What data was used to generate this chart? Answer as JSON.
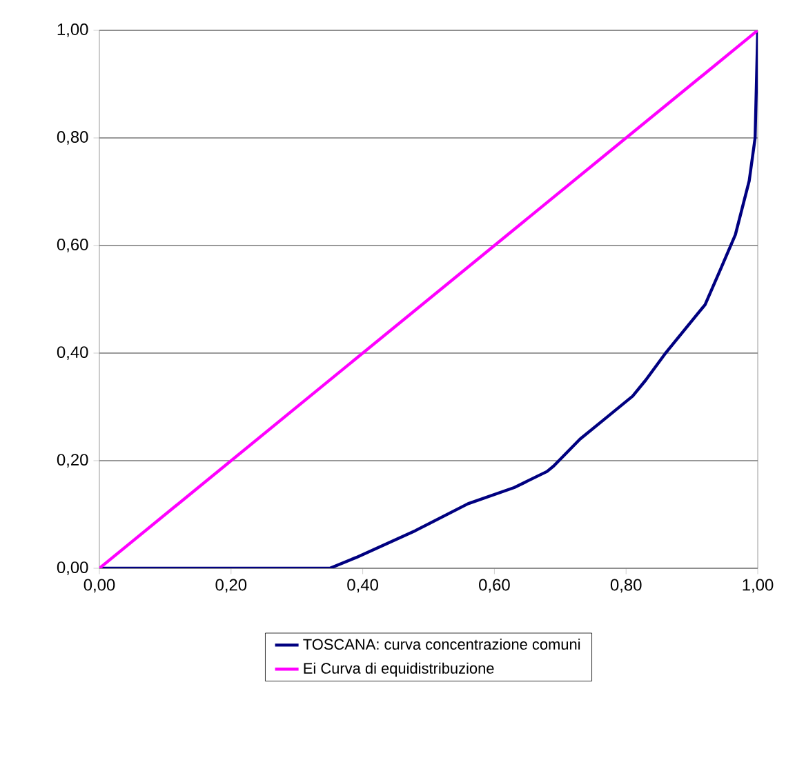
{
  "chart_data": {
    "type": "line",
    "xlim": [
      0,
      1
    ],
    "ylim": [
      0,
      1
    ],
    "xticks": [
      {
        "value": 0,
        "label": "0,00"
      },
      {
        "value": 0.2,
        "label": "0,20"
      },
      {
        "value": 0.4,
        "label": "0,40"
      },
      {
        "value": 0.6,
        "label": "0,60"
      },
      {
        "value": 0.8,
        "label": "0,80"
      },
      {
        "value": 1,
        "label": "1,00"
      }
    ],
    "yticks": [
      {
        "value": 0,
        "label": "0,00"
      },
      {
        "value": 0.2,
        "label": "0,20"
      },
      {
        "value": 0.4,
        "label": "0,40"
      },
      {
        "value": 0.6,
        "label": "0,60"
      },
      {
        "value": 0.8,
        "label": "0,80"
      },
      {
        "value": 1,
        "label": "1,00"
      }
    ],
    "grid": "y",
    "legend": "bottom",
    "marker": "none",
    "line_style": "solid",
    "series": [
      {
        "name": "TOSCANA: curva concentrazione comuni",
        "color": "#000080",
        "x": [
          0,
          0.35,
          0.39,
          0.48,
          0.56,
          0.63,
          0.68,
          0.69,
          0.73,
          0.77,
          0.81,
          0.83,
          0.86,
          0.92,
          0.945,
          0.966,
          0.987,
          0.996,
          1
        ],
        "values": [
          0,
          0,
          0.02,
          0.07,
          0.12,
          0.15,
          0.18,
          0.19,
          0.24,
          0.28,
          0.32,
          0.35,
          0.4,
          0.49,
          0.56,
          0.62,
          0.72,
          0.8,
          1
        ]
      },
      {
        "name": "Ei Curva di equidistribuzione",
        "color": "#ff00ff",
        "x": [
          0,
          1
        ],
        "values": [
          0,
          1
        ]
      }
    ]
  }
}
